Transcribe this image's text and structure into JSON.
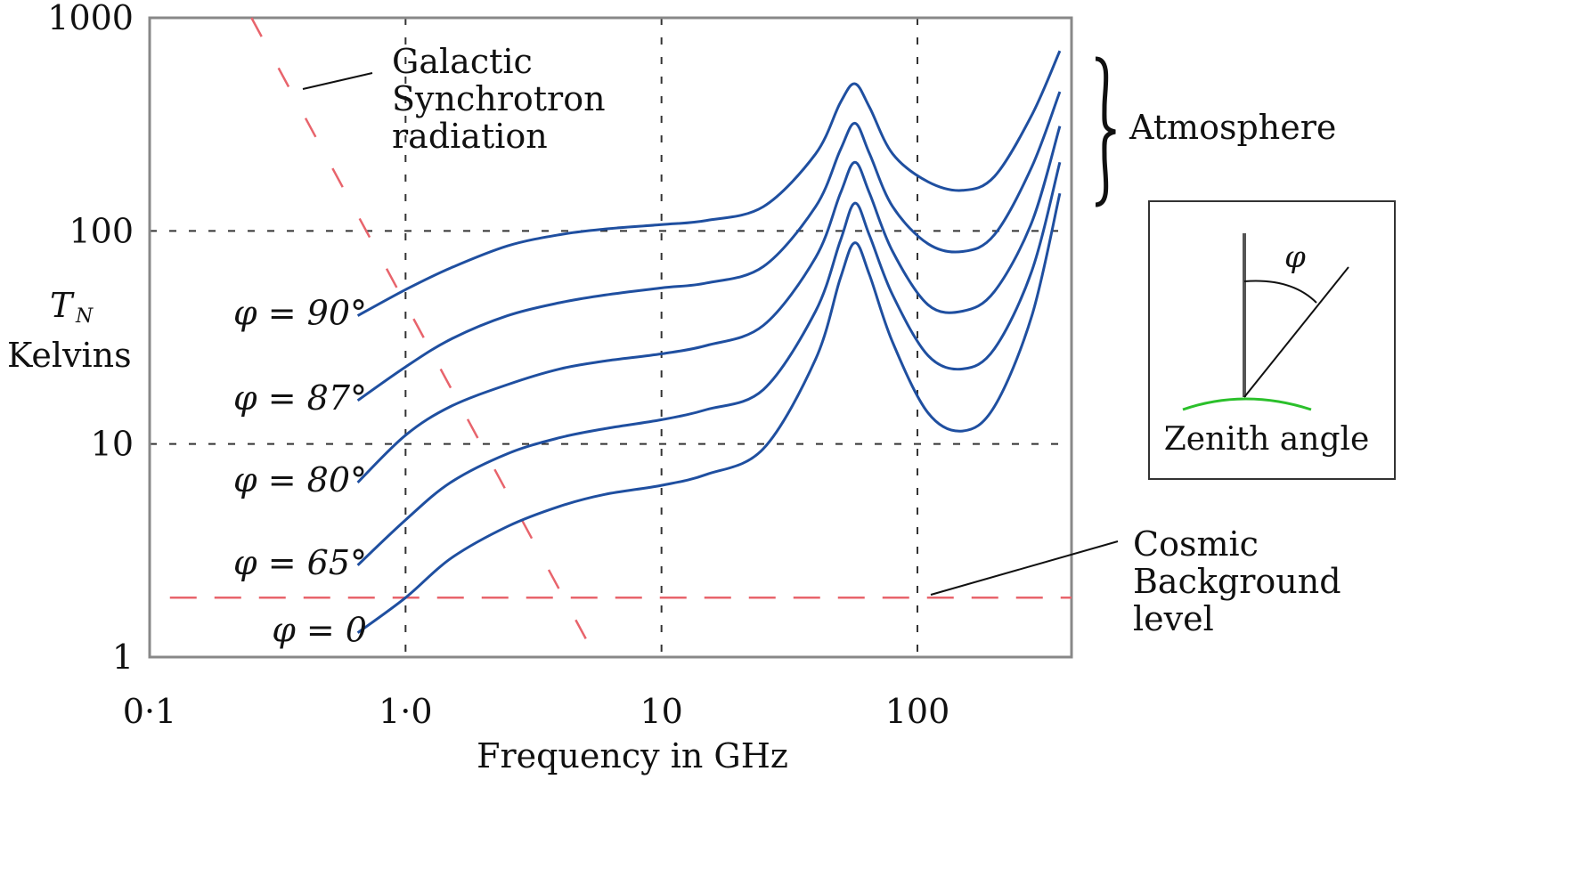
{
  "chart_data": {
    "type": "line",
    "xlabel": "Frequency in GHz",
    "ylabel": "Kelvins",
    "ylabel_symbol": "T",
    "ylabel_subscript": "N",
    "x_scale": "log",
    "y_scale": "log",
    "xlim": [
      0.1,
      400
    ],
    "ylim": [
      1,
      1000
    ],
    "x_ticks": [
      {
        "value": 0.1,
        "label": "0·1"
      },
      {
        "value": 1,
        "label": "1·0"
      },
      {
        "value": 10,
        "label": "10"
      },
      {
        "value": 100,
        "label": "100"
      }
    ],
    "y_ticks": [
      {
        "value": 1,
        "label": "1"
      },
      {
        "value": 10,
        "label": "10"
      },
      {
        "value": 100,
        "label": "100"
      },
      {
        "value": 1000,
        "label": "1000"
      }
    ],
    "grid": "dashed at decades",
    "series": [
      {
        "name": "φ = 90°",
        "color": "#1f4fa0",
        "x": [
          0.65,
          1.0,
          1.5,
          2.5,
          4,
          6,
          10,
          15,
          25,
          40,
          50,
          57,
          65,
          80,
          110,
          150,
          200,
          280,
          360
        ],
        "y": [
          40,
          53,
          67,
          85,
          96,
          102,
          107,
          112,
          130,
          230,
          400,
          490,
          380,
          230,
          170,
          155,
          180,
          350,
          700
        ]
      },
      {
        "name": "φ = 87°",
        "color": "#1f4fa0",
        "x": [
          0.65,
          1.0,
          1.5,
          2.5,
          4,
          6,
          10,
          15,
          25,
          40,
          50,
          57,
          65,
          80,
          110,
          150,
          200,
          280,
          360
        ],
        "y": [
          16,
          23,
          31,
          40,
          46,
          50,
          54,
          57,
          68,
          130,
          240,
          320,
          230,
          130,
          87,
          80,
          96,
          200,
          450
        ]
      },
      {
        "name": "φ = 80°",
        "color": "#1f4fa0",
        "x": [
          0.65,
          1.0,
          1.5,
          2.5,
          4,
          6,
          10,
          15,
          25,
          40,
          50,
          57,
          65,
          80,
          110,
          150,
          200,
          280,
          360
        ],
        "y": [
          6.6,
          11,
          15,
          19,
          22.5,
          24.5,
          26.5,
          29,
          36,
          75,
          150,
          210,
          150,
          80,
          45,
          42,
          52,
          110,
          310
        ]
      },
      {
        "name": "φ = 65°",
        "color": "#1f4fa0",
        "x": [
          0.65,
          1.0,
          1.5,
          2.5,
          4,
          6,
          10,
          15,
          25,
          40,
          50,
          57,
          65,
          80,
          110,
          150,
          200,
          280,
          360
        ],
        "y": [
          2.7,
          4.4,
          6.6,
          9,
          10.7,
          11.8,
          13,
          14.5,
          18,
          42,
          90,
          135,
          95,
          50,
          26,
          22.5,
          28,
          65,
          210
        ]
      },
      {
        "name": "φ = 0",
        "color": "#1f4fa0",
        "x": [
          0.65,
          1.0,
          1.5,
          2.5,
          4,
          6,
          10,
          15,
          25,
          40,
          50,
          57,
          65,
          80,
          110,
          150,
          200,
          280,
          360
        ],
        "y": [
          1.3,
          1.9,
          2.9,
          4.1,
          5.1,
          5.8,
          6.4,
          7.2,
          9.5,
          25,
          60,
          88,
          62,
          30,
          14,
          11.5,
          15,
          40,
          150
        ]
      }
    ],
    "reference_lines": [
      {
        "name": "Galactic Synchrotron radiation",
        "color": "#e8646c",
        "style": "dashed",
        "x": [
          0.25,
          5.8
        ],
        "y": [
          1000,
          0.9
        ]
      },
      {
        "name": "Cosmic Background level",
        "color": "#e8646c",
        "style": "dashed",
        "x": [
          0.12,
          400
        ],
        "y": [
          1.9,
          1.9
        ]
      }
    ],
    "annotations": [
      {
        "id": "synchrotron",
        "lines": [
          "Galactic",
          "Synchrotron",
          "radiation"
        ]
      },
      {
        "id": "atmosphere",
        "lines": [
          "Atmosphere"
        ]
      },
      {
        "id": "cosmic",
        "lines": [
          "Cosmic",
          "Background",
          "level"
        ]
      }
    ],
    "inset": {
      "label": "Zenith angle",
      "angle_symbol": "φ"
    }
  }
}
